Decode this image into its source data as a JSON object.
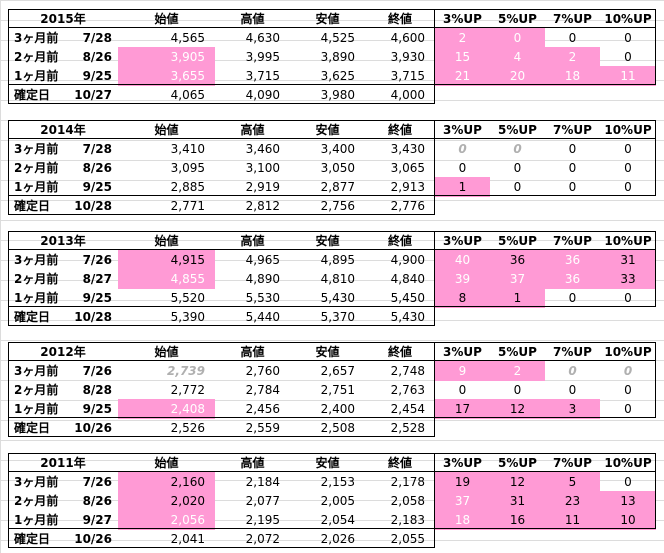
{
  "tables": [
    {
      "year": "2015年",
      "headers": [
        "始値",
        "高値",
        "安値",
        "終値",
        "3%UP",
        "5%UP",
        "7%UP",
        "10%UP"
      ],
      "rows": [
        {
          "label": "3ヶ月前",
          "date": "7/28",
          "cells": [
            "4,565",
            "4,630",
            "4,525",
            "4,600",
            "2",
            "0",
            "0",
            "0"
          ],
          "pink": [
            4,
            5
          ]
        },
        {
          "label": "2ヶ月前",
          "date": "8/26",
          "cells": [
            "3,905",
            "3,995",
            "3,890",
            "3,930",
            "15",
            "4",
            "2",
            "0"
          ],
          "pink": [
            0,
            4,
            5,
            6
          ]
        },
        {
          "label": "1ヶ月前",
          "date": "9/25",
          "cells": [
            "3,655",
            "3,715",
            "3,625",
            "3,715",
            "21",
            "20",
            "18",
            "11"
          ],
          "pink": [
            0,
            4,
            5,
            6,
            7
          ]
        },
        {
          "label": "確定日",
          "date": "10/27",
          "cells": [
            "4,065",
            "4,090",
            "3,980",
            "4,000"
          ]
        }
      ]
    },
    {
      "year": "2014年",
      "headers": [
        "始値",
        "高値",
        "安値",
        "終値",
        "3%UP",
        "5%UP",
        "7%UP",
        "10%UP"
      ],
      "rows": [
        {
          "label": "3ヶ月前",
          "date": "7/28",
          "cells": [
            "3,410",
            "3,460",
            "3,400",
            "3,430",
            "0",
            "0",
            "0",
            "0"
          ],
          "gray": [
            4,
            5
          ]
        },
        {
          "label": "2ヶ月前",
          "date": "8/26",
          "cells": [
            "3,095",
            "3,100",
            "3,050",
            "3,065",
            "0",
            "0",
            "0",
            "0"
          ]
        },
        {
          "label": "1ヶ月前",
          "date": "9/25",
          "cells": [
            "2,885",
            "2,919",
            "2,877",
            "2,913",
            "1",
            "0",
            "0",
            "0"
          ],
          "pinkdark": [
            4
          ]
        },
        {
          "label": "確定日",
          "date": "10/28",
          "cells": [
            "2,771",
            "2,812",
            "2,756",
            "2,776"
          ]
        }
      ]
    },
    {
      "year": "2013年",
      "headers": [
        "始値",
        "高値",
        "安値",
        "終値",
        "3%UP",
        "5%UP",
        "7%UP",
        "10%UP"
      ],
      "rows": [
        {
          "label": "3ヶ月前",
          "date": "7/26",
          "cells": [
            "4,915",
            "4,965",
            "4,895",
            "4,900",
            "40",
            "36",
            "36",
            "31"
          ],
          "pinkdark": [
            0,
            5,
            7
          ],
          "pink": [
            4,
            6
          ]
        },
        {
          "label": "2ヶ月前",
          "date": "8/27",
          "cells": [
            "4,855",
            "4,890",
            "4,810",
            "4,840",
            "39",
            "37",
            "36",
            "33"
          ],
          "pinkdark": [
            7
          ],
          "pink": [
            0,
            4,
            5,
            6
          ]
        },
        {
          "label": "1ヶ月前",
          "date": "9/25",
          "cells": [
            "5,520",
            "5,530",
            "5,430",
            "5,450",
            "8",
            "1",
            "0",
            "0"
          ],
          "pinkdark": [
            4,
            5
          ]
        },
        {
          "label": "確定日",
          "date": "10/28",
          "cells": [
            "5,390",
            "5,440",
            "5,370",
            "5,430"
          ]
        }
      ]
    },
    {
      "year": "2012年",
      "headers": [
        "始値",
        "高値",
        "安値",
        "終値",
        "3%UP",
        "5%UP",
        "7%UP",
        "10%UP"
      ],
      "rows": [
        {
          "label": "3ヶ月前",
          "date": "7/26",
          "cells": [
            "2,739",
            "2,760",
            "2,657",
            "2,748",
            "9",
            "2",
            "0",
            "0"
          ],
          "gray": [
            0,
            6,
            7
          ],
          "pink": [
            4,
            5
          ]
        },
        {
          "label": "2ヶ月前",
          "date": "8/28",
          "cells": [
            "2,772",
            "2,784",
            "2,751",
            "2,763",
            "0",
            "0",
            "0",
            "0"
          ]
        },
        {
          "label": "1ヶ月前",
          "date": "9/25",
          "cells": [
            "2,408",
            "2,456",
            "2,400",
            "2,454",
            "17",
            "12",
            "3",
            "0"
          ],
          "pink": [
            0
          ],
          "pinkdark": [
            4,
            5,
            6
          ]
        },
        {
          "label": "確定日",
          "date": "10/26",
          "cells": [
            "2,526",
            "2,559",
            "2,508",
            "2,528"
          ]
        }
      ]
    },
    {
      "year": "2011年",
      "headers": [
        "始値",
        "高値",
        "安値",
        "終値",
        "3%UP",
        "5%UP",
        "7%UP",
        "10%UP"
      ],
      "rows": [
        {
          "label": "3ヶ月前",
          "date": "7/26",
          "cells": [
            "2,160",
            "2,184",
            "2,153",
            "2,178",
            "19",
            "12",
            "5",
            "0"
          ],
          "pinkdark": [
            0,
            4,
            5,
            6
          ]
        },
        {
          "label": "2ヶ月前",
          "date": "8/26",
          "cells": [
            "2,020",
            "2,077",
            "2,005",
            "2,058",
            "37",
            "31",
            "23",
            "13"
          ],
          "pinkdark": [
            0,
            5,
            6,
            7
          ],
          "pink": [
            4
          ]
        },
        {
          "label": "1ヶ月前",
          "date": "9/27",
          "cells": [
            "2,056",
            "2,195",
            "2,054",
            "2,183",
            "18",
            "16",
            "11",
            "10"
          ],
          "pink": [
            0,
            4
          ],
          "pinkdark": [
            5,
            6,
            7
          ]
        },
        {
          "label": "確定日",
          "date": "10/26",
          "cells": [
            "2,041",
            "2,072",
            "2,026",
            "2,055"
          ]
        }
      ]
    }
  ]
}
